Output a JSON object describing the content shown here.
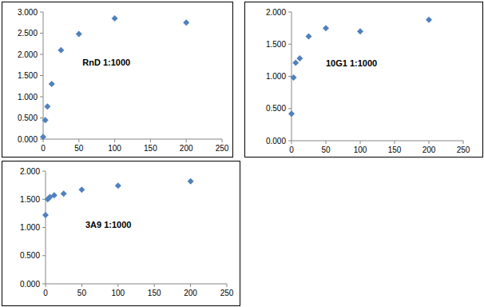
{
  "chart_data": [
    {
      "type": "scatter",
      "title": "RnD 1:1000",
      "marker": "diamond",
      "color": "#4f81bd",
      "grid": false,
      "x": [
        0,
        3,
        6,
        12,
        25,
        50,
        100,
        200
      ],
      "values": [
        0.05,
        0.45,
        0.77,
        1.3,
        2.1,
        2.48,
        2.85,
        2.75
      ],
      "xlim": [
        0,
        250
      ],
      "xticks": [
        0,
        50,
        100,
        150,
        200,
        250
      ],
      "ylim": [
        0,
        3
      ],
      "yticks": [
        {
          "value": 0,
          "label": "0.000"
        },
        {
          "value": 0.5,
          "label": "0.500"
        },
        {
          "value": 1,
          "label": "1.000"
        },
        {
          "value": 1.5,
          "label": "1.500"
        },
        {
          "value": 2,
          "label": "2.000"
        },
        {
          "value": 2.5,
          "label": "2.500"
        },
        {
          "value": 3,
          "label": "3.000"
        }
      ]
    },
    {
      "type": "scatter",
      "title": "10G1 1:1000",
      "marker": "diamond",
      "color": "#4f81bd",
      "grid": false,
      "x": [
        0,
        3,
        6,
        12,
        25,
        50,
        100,
        200
      ],
      "values": [
        0.42,
        0.98,
        1.21,
        1.28,
        1.62,
        1.75,
        1.7,
        1.88
      ],
      "xlim": [
        0,
        250
      ],
      "xticks": [
        0,
        50,
        100,
        150,
        200,
        250
      ],
      "ylim": [
        0,
        2
      ],
      "yticks": [
        {
          "value": 0,
          "label": "0.000"
        },
        {
          "value": 0.5,
          "label": "0.500"
        },
        {
          "value": 1,
          "label": "1.000"
        },
        {
          "value": 1.5,
          "label": "1.500"
        },
        {
          "value": 2,
          "label": "2.000"
        }
      ]
    },
    {
      "type": "scatter",
      "title": "3A9 1:1000",
      "marker": "diamond",
      "color": "#4f81bd",
      "grid": false,
      "x": [
        0,
        3,
        6,
        12,
        25,
        50,
        100,
        200
      ],
      "values": [
        1.22,
        1.5,
        1.54,
        1.57,
        1.6,
        1.67,
        1.74,
        1.82
      ],
      "xlim": [
        0,
        250
      ],
      "xticks": [
        0,
        50,
        100,
        150,
        200,
        250
      ],
      "ylim": [
        0,
        2
      ],
      "yticks": [
        {
          "value": 0,
          "label": "0.000"
        },
        {
          "value": 0.5,
          "label": "0.500"
        },
        {
          "value": 1,
          "label": "1.000"
        },
        {
          "value": 1.5,
          "label": "1.500"
        },
        {
          "value": 2,
          "label": "2.000"
        }
      ]
    }
  ]
}
